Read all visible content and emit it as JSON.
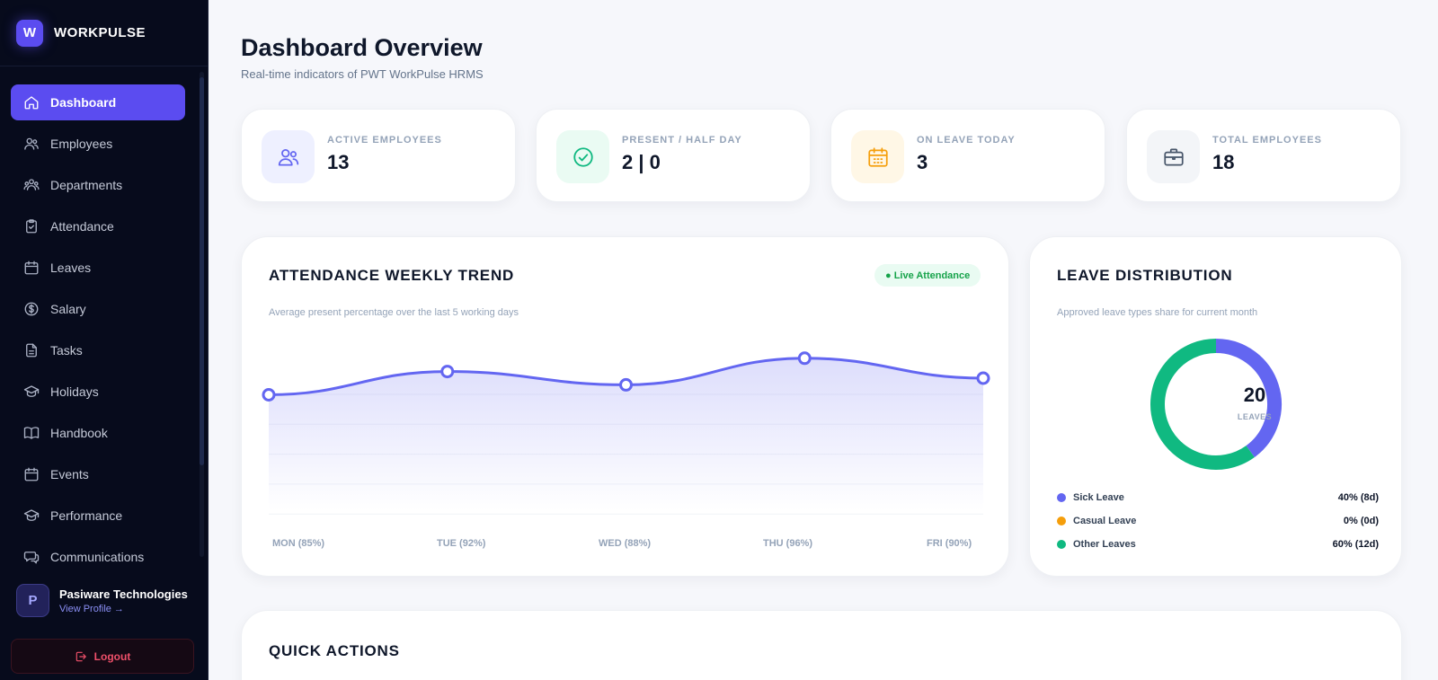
{
  "brand": {
    "logo_letter": "W",
    "name": "WORKPULSE"
  },
  "sidebar": {
    "items": [
      {
        "label": "Dashboard",
        "icon": "home-icon",
        "active": true
      },
      {
        "label": "Employees",
        "icon": "users-icon"
      },
      {
        "label": "Departments",
        "icon": "departments-icon"
      },
      {
        "label": "Attendance",
        "icon": "clipboard-icon"
      },
      {
        "label": "Leaves",
        "icon": "calendar-icon"
      },
      {
        "label": "Salary",
        "icon": "dollar-icon"
      },
      {
        "label": "Tasks",
        "icon": "file-icon"
      },
      {
        "label": "Holidays",
        "icon": "graduation-cap-icon"
      },
      {
        "label": "Handbook",
        "icon": "book-icon"
      },
      {
        "label": "Events",
        "icon": "calendar-icon"
      },
      {
        "label": "Performance",
        "icon": "graduation-cap-icon"
      },
      {
        "label": "Communications",
        "icon": "chat-icon"
      }
    ],
    "profile": {
      "initial": "P",
      "name": "Pasiware Technologies",
      "link": "View Profile →"
    },
    "logout_label": "Logout"
  },
  "header": {
    "title": "Dashboard Overview",
    "subtitle": "Real-time indicators of PWT WorkPulse HRMS"
  },
  "stats": [
    {
      "label": "ACTIVE EMPLOYEES",
      "value": "13",
      "icon": "users-icon",
      "color": "#6366f1"
    },
    {
      "label": "PRESENT / HALF DAY",
      "value": "2 | 0",
      "icon": "check-circle-icon",
      "color": "#10b981"
    },
    {
      "label": "ON LEAVE TODAY",
      "value": "3",
      "icon": "calendar-icon",
      "color": "#f59e0b"
    },
    {
      "label": "TOTAL EMPLOYEES",
      "value": "18",
      "icon": "briefcase-icon",
      "color": "#475569"
    }
  ],
  "attendance": {
    "title": "ATTENDANCE WEEKLY TREND",
    "badge": "● Live Attendance",
    "subtitle": "Average present percentage over the last 5 working days",
    "labels": [
      "MON (85%)",
      "TUE (92%)",
      "WED (88%)",
      "THU (96%)",
      "FRI (90%)"
    ]
  },
  "leave": {
    "title": "LEAVE DISTRIBUTION",
    "subtitle": "Approved leave types share for current month",
    "total": "20",
    "total_label": "LEAVES",
    "legend": [
      {
        "label": "Sick Leave",
        "value": "40% (8d)",
        "color": "#6366f1"
      },
      {
        "label": "Casual Leave",
        "value": "0% (0d)",
        "color": "#f59e0b"
      },
      {
        "label": "Other Leaves",
        "value": "60% (12d)",
        "color": "#10b981"
      }
    ]
  },
  "quick_actions": {
    "title": "QUICK ACTIONS"
  },
  "chart_data": [
    {
      "type": "area",
      "title": "ATTENDANCE WEEKLY TREND",
      "categories": [
        "MON (85%)",
        "TUE (92%)",
        "WED (88%)",
        "THU (96%)",
        "FRI (90%)"
      ],
      "values": [
        85,
        92,
        88,
        96,
        90
      ],
      "ylim": [
        50,
        100
      ],
      "grid": true,
      "colors": [
        "#6366f1"
      ]
    },
    {
      "type": "pie",
      "title": "LEAVE DISTRIBUTION",
      "categories": [
        "Sick Leave",
        "Casual Leave",
        "Other Leaves"
      ],
      "values": [
        8,
        0,
        12
      ],
      "colors": [
        "#6366f1",
        "#f59e0b",
        "#10b981"
      ]
    }
  ]
}
